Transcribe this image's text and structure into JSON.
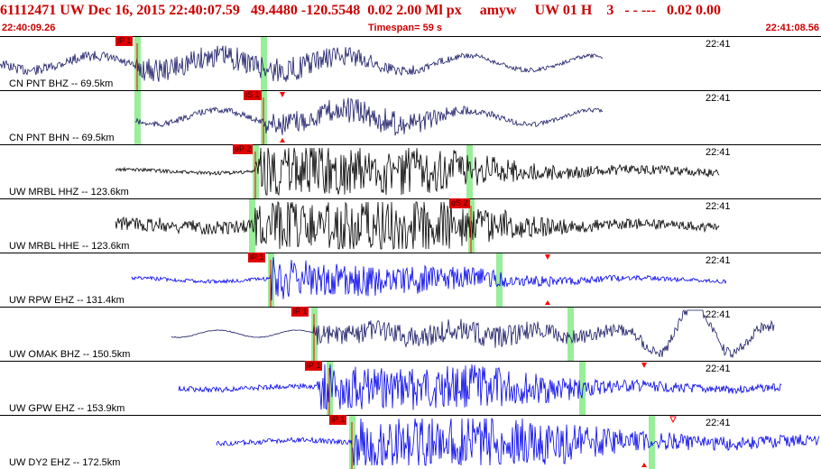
{
  "header": {
    "event_id": "61112471",
    "network": "UW",
    "datetime": "Dec 16, 2015 22:40:07.59",
    "lat": "49.4480",
    "lon": "-120.5548",
    "depth_mag": "0.02 2.00",
    "mag_type": "Ml",
    "units": "px",
    "author": "amyw",
    "flags": "UW 01 H",
    "quality": "3",
    "dashes": "-   -  ---",
    "residual": "0.02 0.00",
    "start_time": "22:40:09.26",
    "timespan": "Timespan=  59 s",
    "end_time": "22:41:08.56"
  },
  "colors": {
    "header_text": "#cc0000",
    "trace_dark": "#1a1a66",
    "trace_black": "#000000",
    "trace_blue": "#0000ee",
    "pick_marker": "#ff0000",
    "window_band": "#99ee99",
    "pick_tag": "#e00000"
  },
  "traces": [
    {
      "label": "CN PNT BHZ -- 69.5km",
      "time": "22:41",
      "color": "dark",
      "picks": [
        {
          "tag": "iP 1"
        }
      ],
      "markers": []
    },
    {
      "label": "CN PNT BHN -- 69.5km",
      "time": "22:41",
      "color": "dark",
      "picks": [
        {
          "tag": "iS 1"
        }
      ],
      "markers": [
        "top-triangle",
        "bottom-triangle"
      ]
    },
    {
      "label": "UW MRBL HHZ -- 123.6km",
      "time": "22:41",
      "color": "black",
      "picks": [
        {
          "tag": "eP 2"
        }
      ],
      "markers": []
    },
    {
      "label": "UW MRBL HHE -- 123.6km",
      "time": "22:41",
      "color": "black",
      "picks": [
        {
          "tag": "eS 2"
        }
      ],
      "markers": []
    },
    {
      "label": "UW RPW EHZ -- 131.4km",
      "time": "22:41",
      "color": "blue",
      "picks": [
        {
          "tag": "iP 1"
        }
      ],
      "markers": [
        "top-triangle",
        "bottom-triangle"
      ]
    },
    {
      "label": "UW OMAK BHZ -- 150.5km",
      "time": "22:41",
      "color": "dark",
      "picks": [
        {
          "tag": "iP 1"
        }
      ],
      "markers": []
    },
    {
      "label": "UW GPW EHZ -- 153.9km",
      "time": "22:41",
      "color": "blue",
      "picks": [
        {
          "tag": "iP 1"
        }
      ],
      "markers": [
        "top-triangle"
      ]
    },
    {
      "label": "UW DY2 EHZ -- 172.5km",
      "time": "22:41",
      "color": "blue",
      "picks": [
        {
          "tag": "iP 1"
        }
      ],
      "markers": [
        "bottom-triangle",
        "open-triangle"
      ]
    }
  ]
}
